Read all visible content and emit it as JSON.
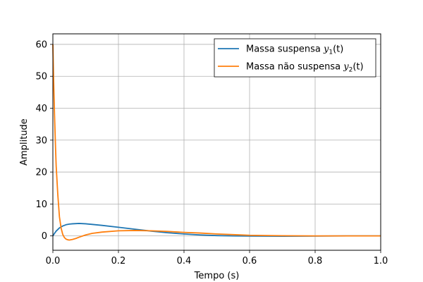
{
  "chart_data": {
    "type": "line",
    "title": "",
    "xlabel": "Tempo (s)",
    "ylabel": "Amplitude",
    "xlim": [
      0,
      1.0
    ],
    "ylim": [
      -4.5,
      63.3
    ],
    "grid": true,
    "legend_position": "top-right",
    "x_ticks": [
      0.0,
      0.2,
      0.4,
      0.6,
      0.8,
      1.0
    ],
    "x_tick_labels": [
      "0.0",
      "0.2",
      "0.4",
      "0.6",
      "0.8",
      "1.0"
    ],
    "y_ticks": [
      0,
      10,
      20,
      30,
      40,
      50,
      60
    ],
    "y_tick_labels": [
      "0",
      "10",
      "20",
      "30",
      "40",
      "50",
      "60"
    ],
    "series": [
      {
        "name": "Massa suspensa y1(t)",
        "legend_prefix": "Massa suspensa ",
        "legend_var": "y",
        "legend_sub": "1",
        "legend_suffix": "(t)",
        "color": "#1f77b4",
        "x": [
          0,
          0.005,
          0.01,
          0.02,
          0.03,
          0.04,
          0.05,
          0.06,
          0.08,
          0.1,
          0.12,
          0.15,
          0.2,
          0.25,
          0.3,
          0.35,
          0.4,
          0.45,
          0.5,
          0.55,
          0.6,
          0.7,
          0.8,
          0.9,
          1.0
        ],
        "y": [
          0,
          0.8,
          1.5,
          2.5,
          3.1,
          3.5,
          3.7,
          3.8,
          3.9,
          3.8,
          3.6,
          3.3,
          2.7,
          2.1,
          1.5,
          1.0,
          0.6,
          0.3,
          0.1,
          0.0,
          -0.05,
          -0.1,
          -0.05,
          0.0,
          0.0
        ]
      },
      {
        "name": "Massa não suspensa y2(t)",
        "legend_prefix": "Massa não suspensa ",
        "legend_var": "y",
        "legend_sub": "2",
        "legend_suffix": "(t)",
        "color": "#ff7f0e",
        "x": [
          0,
          0.002,
          0.005,
          0.008,
          0.01,
          0.015,
          0.02,
          0.025,
          0.03,
          0.035,
          0.04,
          0.045,
          0.05,
          0.06,
          0.07,
          0.08,
          0.1,
          0.12,
          0.15,
          0.2,
          0.25,
          0.3,
          0.35,
          0.4,
          0.45,
          0.5,
          0.55,
          0.6,
          0.7,
          0.8,
          0.9,
          1.0
        ],
        "y": [
          60,
          50,
          38,
          28,
          22,
          13,
          6,
          2.5,
          0.5,
          -0.5,
          -1.0,
          -1.2,
          -1.3,
          -1.1,
          -0.8,
          -0.4,
          0.3,
          0.8,
          1.2,
          1.6,
          1.7,
          1.6,
          1.4,
          1.1,
          0.9,
          0.6,
          0.4,
          0.2,
          0.05,
          0.0,
          0.0,
          0.0
        ]
      }
    ]
  }
}
